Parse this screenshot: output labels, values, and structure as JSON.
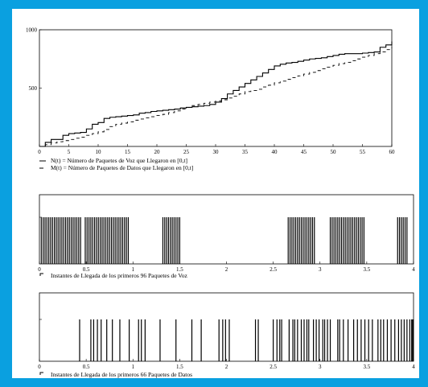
{
  "colors": {
    "frame": "#0aa0e0",
    "background": "#ffffff",
    "ink": "#000000"
  },
  "chart_data": [
    {
      "type": "line",
      "title": "",
      "xlabel": "",
      "ylabel": "",
      "xlim": [
        0,
        60
      ],
      "ylim": [
        0,
        1000
      ],
      "x_ticks": [
        "0",
        "5",
        "10",
        "15",
        "20",
        "25",
        "30",
        "35",
        "40",
        "45",
        "50",
        "55",
        "60"
      ],
      "y_ticks": [
        "500",
        "1000"
      ],
      "grid": false,
      "series": [
        {
          "name": "N(t) = Número de Paquetes de Voz que Llegaron en [0,t]",
          "style": "solid",
          "x": [
            0,
            1,
            2,
            3,
            4,
            5,
            6,
            7,
            8,
            9,
            10,
            11,
            12,
            13,
            14,
            15,
            16,
            17,
            18,
            19,
            20,
            21,
            22,
            23,
            24,
            25,
            26,
            27,
            28,
            29,
            30,
            31,
            32,
            33,
            34,
            35,
            36,
            37,
            38,
            39,
            40,
            41,
            42,
            43,
            44,
            45,
            46,
            47,
            48,
            49,
            50,
            51,
            52,
            53,
            54,
            55,
            56,
            57,
            58,
            59,
            60
          ],
          "values": [
            0,
            35,
            60,
            60,
            95,
            110,
            115,
            120,
            150,
            190,
            205,
            240,
            250,
            255,
            260,
            265,
            270,
            285,
            290,
            300,
            305,
            310,
            315,
            320,
            330,
            335,
            340,
            345,
            350,
            360,
            380,
            410,
            450,
            480,
            510,
            540,
            570,
            600,
            630,
            660,
            690,
            705,
            715,
            720,
            730,
            740,
            750,
            755,
            760,
            770,
            780,
            790,
            795,
            795,
            795,
            800,
            805,
            810,
            850,
            870,
            900
          ]
        },
        {
          "name": "M(t) = Número de Paquetes de Datos que Llegaron en [0,t]",
          "style": "dashed",
          "x": [
            0,
            1,
            2,
            3,
            4,
            5,
            6,
            7,
            8,
            9,
            10,
            11,
            12,
            13,
            14,
            15,
            16,
            17,
            18,
            19,
            20,
            21,
            22,
            23,
            24,
            25,
            26,
            27,
            28,
            29,
            30,
            31,
            32,
            33,
            34,
            35,
            36,
            37,
            38,
            39,
            40,
            41,
            42,
            43,
            44,
            45,
            46,
            47,
            48,
            49,
            50,
            51,
            52,
            53,
            54,
            55,
            56,
            57,
            58,
            59,
            60
          ],
          "values": [
            0,
            15,
            30,
            40,
            50,
            60,
            70,
            80,
            95,
            110,
            125,
            145,
            170,
            190,
            200,
            210,
            225,
            235,
            245,
            255,
            265,
            275,
            290,
            305,
            320,
            335,
            350,
            360,
            370,
            380,
            390,
            400,
            415,
            430,
            450,
            470,
            480,
            490,
            510,
            525,
            545,
            560,
            575,
            590,
            605,
            620,
            635,
            650,
            665,
            680,
            695,
            710,
            720,
            735,
            750,
            765,
            780,
            795,
            810,
            830,
            850
          ]
        }
      ]
    },
    {
      "type": "scatter",
      "subtype": "event-impulses",
      "xlim": [
        0,
        4
      ],
      "x_ticks": [
        "0",
        "0.5",
        "1",
        "1.5",
        "2",
        "2.5",
        "3",
        "3.5",
        "4"
      ],
      "legend": "Instantes de Llegada de los primeros 96 Paquetes de Voz",
      "x": [
        0.02,
        0.04,
        0.06,
        0.08,
        0.1,
        0.12,
        0.14,
        0.16,
        0.18,
        0.2,
        0.22,
        0.24,
        0.26,
        0.28,
        0.3,
        0.32,
        0.34,
        0.36,
        0.38,
        0.4,
        0.42,
        0.44,
        0.49,
        0.51,
        0.53,
        0.55,
        0.57,
        0.59,
        0.61,
        0.63,
        0.65,
        0.67,
        0.69,
        0.71,
        0.73,
        0.75,
        0.77,
        0.79,
        0.81,
        0.83,
        0.85,
        0.87,
        0.89,
        0.91,
        0.93,
        0.95,
        1.32,
        1.34,
        1.36,
        1.38,
        1.4,
        1.42,
        1.44,
        1.46,
        1.48,
        1.5,
        2.66,
        2.68,
        2.7,
        2.72,
        2.74,
        2.76,
        2.78,
        2.8,
        2.82,
        2.84,
        2.86,
        2.88,
        2.9,
        2.92,
        2.94,
        3.11,
        3.13,
        3.15,
        3.17,
        3.19,
        3.21,
        3.23,
        3.25,
        3.27,
        3.29,
        3.31,
        3.33,
        3.35,
        3.37,
        3.39,
        3.41,
        3.43,
        3.45,
        3.47,
        3.83,
        3.85,
        3.87,
        3.89,
        3.91,
        3.93
      ]
    },
    {
      "type": "scatter",
      "subtype": "event-impulses",
      "xlim": [
        0,
        4
      ],
      "x_ticks": [
        "0",
        "0.5",
        "1",
        "1.5",
        "2",
        "2.5",
        "3",
        "3.5",
        "4"
      ],
      "legend": "Instantes de Llegada de los primeros 66 Paquetes de Datos",
      "x": [
        0.43,
        0.55,
        0.58,
        0.62,
        0.66,
        0.72,
        0.78,
        0.86,
        0.96,
        1.06,
        1.09,
        1.13,
        1.29,
        1.46,
        1.63,
        1.73,
        1.92,
        1.96,
        1.99,
        2.03,
        2.31,
        2.34,
        2.5,
        2.54,
        2.57,
        2.59,
        2.67,
        2.71,
        2.73,
        2.76,
        2.8,
        2.83,
        2.86,
        2.88,
        2.93,
        2.96,
        2.99,
        3.03,
        3.05,
        3.08,
        3.11,
        3.19,
        3.21,
        3.25,
        3.3,
        3.36,
        3.4,
        3.44,
        3.48,
        3.52,
        3.56,
        3.62,
        3.65,
        3.68,
        3.72,
        3.76,
        3.8,
        3.84,
        3.87,
        3.9,
        3.93,
        3.96,
        3.98,
        3.99,
        3.995,
        3.998
      ]
    }
  ]
}
